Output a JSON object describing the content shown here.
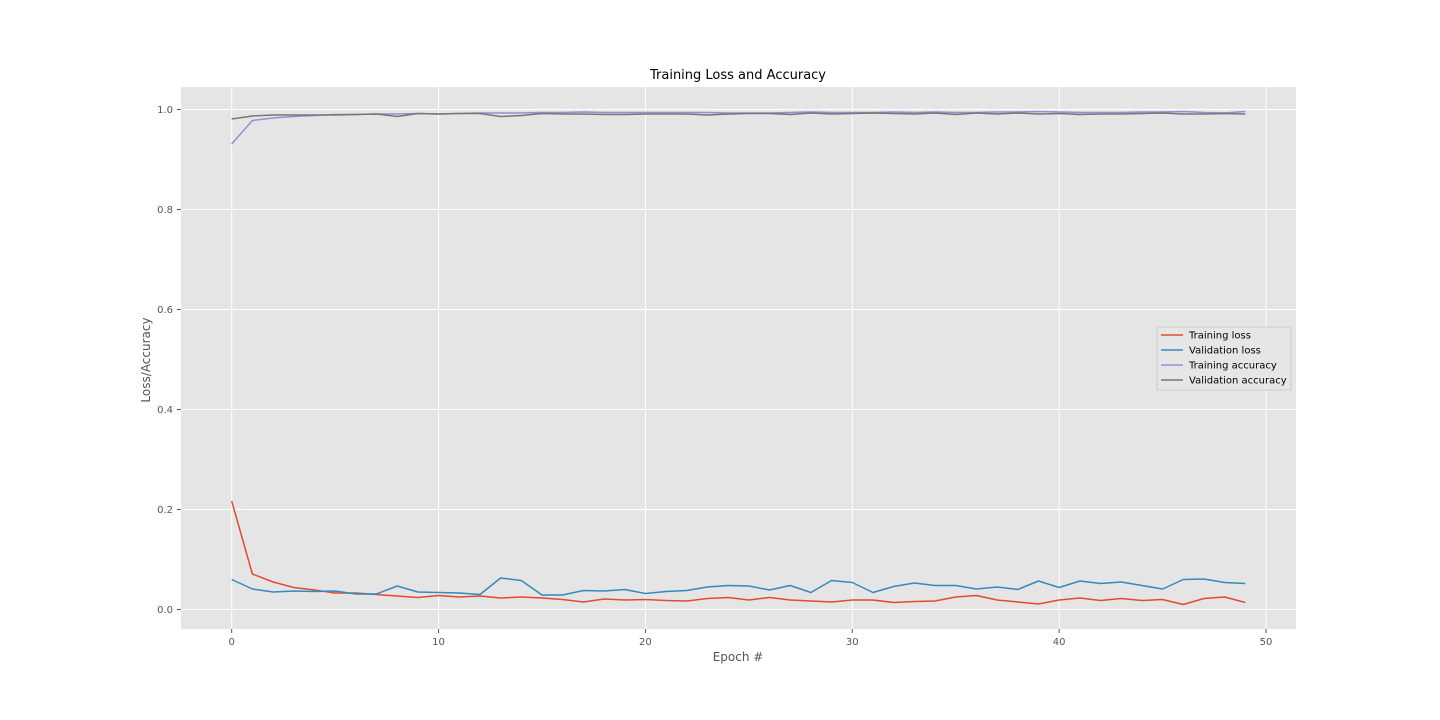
{
  "chart_data": {
    "type": "line",
    "title": "Training Loss and Accuracy",
    "xlabel": "Epoch #",
    "ylabel": "Loss/Accuracy",
    "xlim": [
      -2.45,
      51.45
    ],
    "ylim": [
      -0.039,
      1.045
    ],
    "xticks": [
      0,
      10,
      20,
      30,
      40,
      50
    ],
    "yticks": [
      0.0,
      0.2,
      0.4,
      0.6,
      0.8,
      1.0
    ],
    "ytick_labels": [
      "0.0",
      "0.2",
      "0.4",
      "0.6",
      "0.8",
      "1.0"
    ],
    "grid": true,
    "legend_position": "center-right",
    "x": [
      0,
      1,
      2,
      3,
      4,
      5,
      6,
      7,
      8,
      9,
      10,
      11,
      12,
      13,
      14,
      15,
      16,
      17,
      18,
      19,
      20,
      21,
      22,
      23,
      24,
      25,
      26,
      27,
      28,
      29,
      30,
      31,
      32,
      33,
      34,
      35,
      36,
      37,
      38,
      39,
      40,
      41,
      42,
      43,
      44,
      45,
      46,
      47,
      48,
      49
    ],
    "series": [
      {
        "name": "Training loss",
        "color": "#E24A33",
        "values": [
          0.217,
          0.071,
          0.055,
          0.044,
          0.039,
          0.033,
          0.033,
          0.03,
          0.027,
          0.024,
          0.028,
          0.025,
          0.027,
          0.023,
          0.025,
          0.023,
          0.02,
          0.015,
          0.021,
          0.019,
          0.02,
          0.018,
          0.017,
          0.022,
          0.024,
          0.019,
          0.024,
          0.019,
          0.017,
          0.015,
          0.019,
          0.019,
          0.014,
          0.016,
          0.017,
          0.025,
          0.028,
          0.019,
          0.015,
          0.011,
          0.019,
          0.023,
          0.018,
          0.022,
          0.018,
          0.02,
          0.01,
          0.022,
          0.025,
          0.014
        ]
      },
      {
        "name": "Validation loss",
        "color": "#348ABD",
        "values": [
          0.06,
          0.041,
          0.035,
          0.037,
          0.036,
          0.037,
          0.031,
          0.031,
          0.047,
          0.035,
          0.034,
          0.033,
          0.03,
          0.063,
          0.058,
          0.029,
          0.029,
          0.038,
          0.037,
          0.04,
          0.032,
          0.036,
          0.038,
          0.045,
          0.048,
          0.047,
          0.039,
          0.048,
          0.034,
          0.058,
          0.054,
          0.034,
          0.046,
          0.053,
          0.048,
          0.048,
          0.041,
          0.045,
          0.04,
          0.057,
          0.044,
          0.057,
          0.052,
          0.055,
          0.048,
          0.041,
          0.06,
          0.061,
          0.054,
          0.052
        ]
      },
      {
        "name": "Training accuracy",
        "color": "#988ED5",
        "values": [
          0.931,
          0.978,
          0.983,
          0.986,
          0.988,
          0.99,
          0.99,
          0.991,
          0.991,
          0.992,
          0.991,
          0.992,
          0.993,
          0.993,
          0.993,
          0.994,
          0.994,
          0.995,
          0.994,
          0.994,
          0.994,
          0.994,
          0.994,
          0.994,
          0.993,
          0.993,
          0.993,
          0.994,
          0.995,
          0.994,
          0.994,
          0.994,
          0.995,
          0.994,
          0.995,
          0.994,
          0.994,
          0.995,
          0.995,
          0.996,
          0.995,
          0.994,
          0.994,
          0.994,
          0.995,
          0.995,
          0.996,
          0.994,
          0.993,
          0.996
        ]
      },
      {
        "name": "Validation accuracy",
        "color": "#777777",
        "values": [
          0.981,
          0.987,
          0.989,
          0.989,
          0.989,
          0.989,
          0.99,
          0.991,
          0.986,
          0.992,
          0.991,
          0.992,
          0.992,
          0.986,
          0.988,
          0.992,
          0.991,
          0.991,
          0.99,
          0.99,
          0.991,
          0.991,
          0.991,
          0.989,
          0.991,
          0.992,
          0.992,
          0.99,
          0.993,
          0.991,
          0.992,
          0.993,
          0.992,
          0.991,
          0.993,
          0.99,
          0.993,
          0.991,
          0.993,
          0.991,
          0.992,
          0.99,
          0.991,
          0.991,
          0.992,
          0.993,
          0.991,
          0.991,
          0.992,
          0.991
        ]
      }
    ]
  }
}
